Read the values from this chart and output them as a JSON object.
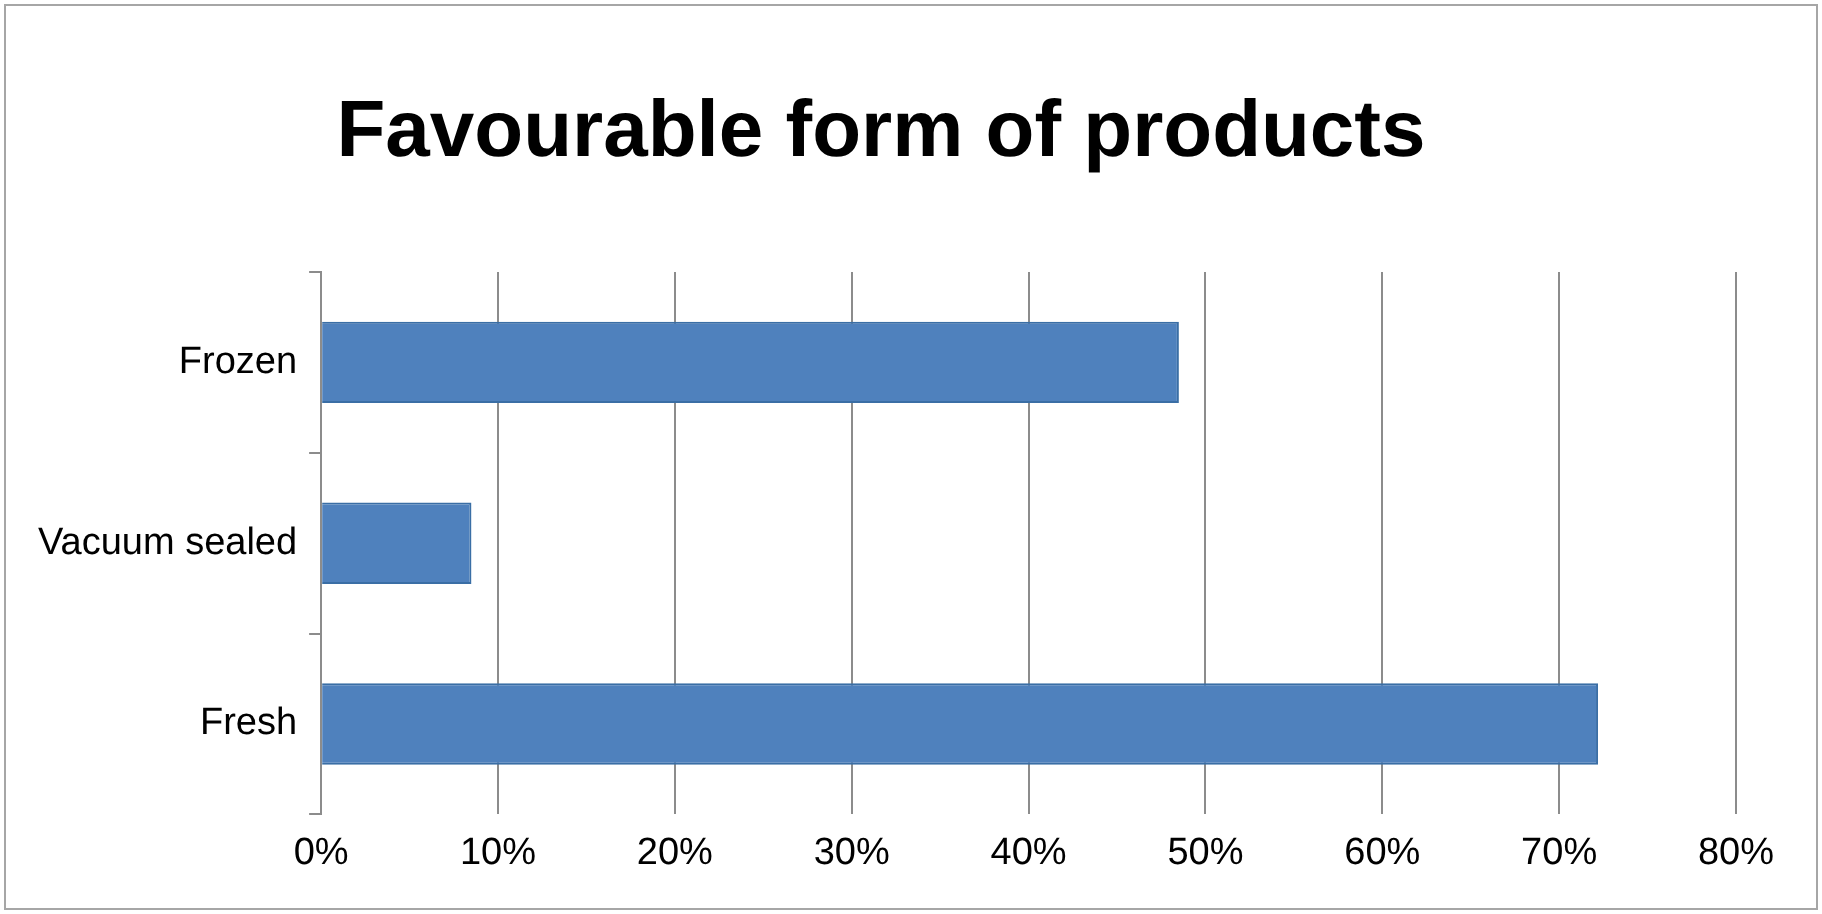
{
  "chart_data": {
    "type": "bar",
    "orientation": "horizontal",
    "title": "Favourable form of products",
    "categories": [
      "Frozen",
      "Vacuum sealed",
      "Fresh"
    ],
    "values": [
      48.5,
      8.5,
      72.2
    ],
    "color": "#4f81bd",
    "xlim": [
      0,
      80
    ],
    "xticks": [
      {
        "value": 0,
        "label": "0%"
      },
      {
        "value": 10,
        "label": "10%"
      },
      {
        "value": 20,
        "label": "20%"
      },
      {
        "value": 30,
        "label": "30%"
      },
      {
        "value": 40,
        "label": "40%"
      },
      {
        "value": 50,
        "label": "50%"
      },
      {
        "value": 60,
        "label": "60%"
      },
      {
        "value": 70,
        "label": "70%"
      },
      {
        "value": 80,
        "label": "80%"
      }
    ],
    "grid": "x",
    "legend": false
  }
}
